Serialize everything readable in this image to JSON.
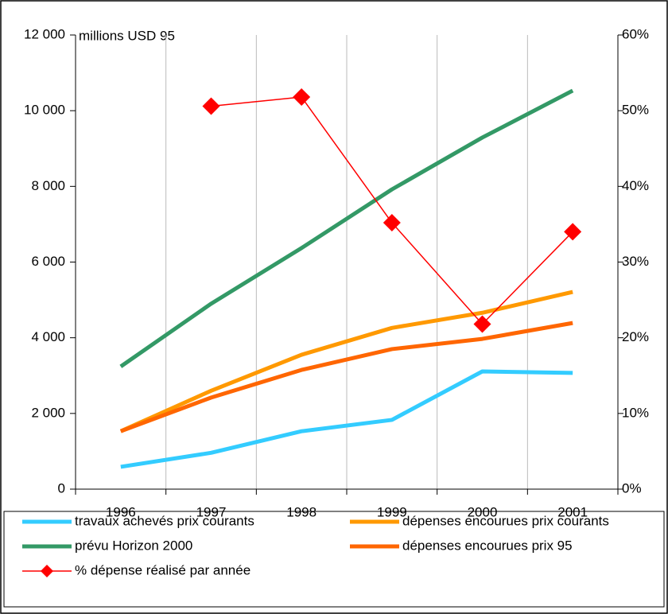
{
  "chart_data": {
    "type": "line",
    "annotation": "millions USD 95",
    "categories": [
      "1996",
      "1997",
      "1998",
      "1999",
      "2000",
      "2001"
    ],
    "series": [
      {
        "name": "travaux achevés prix courants",
        "color": "#33ccff",
        "values": [
          590,
          960,
          1530,
          1830,
          3110,
          3070
        ]
      },
      {
        "name": "dépenses encourues prix courants",
        "color": "#ff9900",
        "values": [
          1530,
          2600,
          3550,
          4260,
          4660,
          5210
        ]
      },
      {
        "name": "prévu Horizon 2000",
        "color": "#339966",
        "values": [
          3240,
          4900,
          6370,
          7920,
          9290,
          10530
        ]
      },
      {
        "name": "dépenses encourues prix 95",
        "color": "#ff6600",
        "values": [
          1530,
          2420,
          3150,
          3700,
          3970,
          4390
        ]
      },
      {
        "name": "% dépense réalisé par année",
        "color": "#ff0000",
        "axis": "y2",
        "marker": "diamond",
        "values": [
          null,
          50.6,
          51.8,
          35.2,
          21.8,
          34.0
        ]
      }
    ],
    "ylim": [
      0,
      12000
    ],
    "yticks": [
      0,
      {
        "value": 2000,
        "label": "2 000"
      },
      {
        "value": 4000,
        "label": "4 000"
      },
      {
        "value": 6000,
        "label": "6 000"
      },
      {
        "value": 8000,
        "label": "8 000"
      },
      {
        "value": 10000,
        "label": "10 000"
      },
      {
        "value": 12000,
        "label": "12 000"
      }
    ],
    "y2lim": [
      0,
      60
    ],
    "y2ticks": [
      {
        "value": 0,
        "label": "0%"
      },
      {
        "value": 10,
        "label": "10%"
      },
      {
        "value": 20,
        "label": "20%"
      },
      {
        "value": 30,
        "label": "30%"
      },
      {
        "value": 40,
        "label": "40%"
      },
      {
        "value": 50,
        "label": "50%"
      },
      {
        "value": 60,
        "label": "60%"
      }
    ]
  }
}
